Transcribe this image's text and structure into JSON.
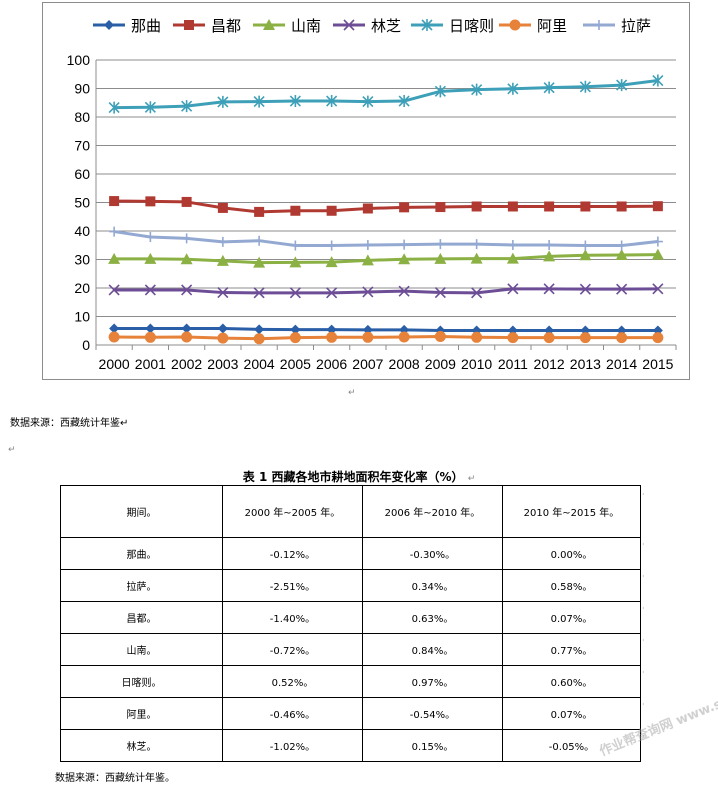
{
  "chart_data": {
    "type": "line",
    "x": [
      2000,
      2001,
      2002,
      2003,
      2004,
      2005,
      2006,
      2007,
      2008,
      2009,
      2010,
      2011,
      2012,
      2013,
      2014,
      2015
    ],
    "ylim": [
      0,
      100
    ],
    "yticks": [
      0,
      10,
      20,
      30,
      40,
      50,
      60,
      70,
      80,
      90,
      100
    ],
    "grid": true,
    "legend_position": "top",
    "series": [
      {
        "name": "那曲",
        "color": "#2a5fa8",
        "marker": "diamond",
        "values": [
          5.8,
          5.8,
          5.8,
          5.8,
          5.5,
          5.4,
          5.4,
          5.3,
          5.3,
          5.1,
          5.1,
          5.1,
          5.1,
          5.1,
          5.1,
          5.1
        ]
      },
      {
        "name": "昌都",
        "color": "#b03a32",
        "marker": "square",
        "values": [
          50.5,
          50.4,
          50.2,
          48.1,
          46.7,
          47.1,
          47.1,
          47.9,
          48.3,
          48.4,
          48.6,
          48.6,
          48.6,
          48.6,
          48.6,
          48.7
        ]
      },
      {
        "name": "山南",
        "color": "#8bb043",
        "marker": "triangle",
        "values": [
          30.2,
          30.2,
          30.1,
          29.5,
          28.9,
          29.0,
          29.1,
          29.7,
          30.1,
          30.2,
          30.3,
          30.3,
          31.1,
          31.5,
          31.6,
          31.7
        ]
      },
      {
        "name": "林芝",
        "color": "#6d4e96",
        "marker": "x",
        "values": [
          19.3,
          19.3,
          19.3,
          18.4,
          18.3,
          18.3,
          18.3,
          18.6,
          18.9,
          18.4,
          18.3,
          19.7,
          19.7,
          19.6,
          19.6,
          19.7
        ]
      },
      {
        "name": "日喀则",
        "color": "#3ea0b8",
        "marker": "star",
        "values": [
          83.3,
          83.4,
          83.8,
          85.3,
          85.4,
          85.6,
          85.6,
          85.4,
          85.6,
          89.0,
          89.6,
          89.9,
          90.3,
          90.6,
          91.2,
          92.8
        ]
      },
      {
        "name": "阿里",
        "color": "#e6823a",
        "marker": "circle",
        "values": [
          2.8,
          2.7,
          2.8,
          2.4,
          2.2,
          2.6,
          2.7,
          2.7,
          2.8,
          3.0,
          2.7,
          2.6,
          2.6,
          2.6,
          2.6,
          2.6
        ]
      },
      {
        "name": "拉萨",
        "color": "#93a9d2",
        "marker": "plus",
        "values": [
          39.8,
          37.9,
          37.4,
          36.2,
          36.6,
          34.9,
          34.9,
          35.1,
          35.2,
          35.4,
          35.4,
          35.1,
          35.1,
          34.9,
          34.9,
          36.3
        ]
      }
    ]
  },
  "doc": {
    "chart_return_mark": "↵",
    "source_1": "数据来源：西藏统计年鉴↵",
    "blank_mark": "↵",
    "table_title": "表 1    西藏各地市耕地面积年变化率（%）",
    "table_title_mark": "↵",
    "source_2": "数据来源：西藏统计年鉴。",
    "watermark": "作业帮查询网 www.shvv.com"
  },
  "table": {
    "headers": [
      "期间。",
      "2000 年~2005 年。",
      "2006 年~2010 年。",
      "2010 年~2015 年。"
    ],
    "rows": [
      [
        "那曲。",
        "-0.12%。",
        "-0.30%。",
        "0.00%。"
      ],
      [
        "拉萨。",
        "-2.51%。",
        "0.34%。",
        "0.58%。"
      ],
      [
        "昌都。",
        "-1.40%。",
        "0.63%。",
        "0.07%。"
      ],
      [
        "山南。",
        "-0.72%。",
        "0.84%。",
        "0.77%。"
      ],
      [
        "日喀则。",
        "0.52%。",
        "0.97%。",
        "0.60%。"
      ],
      [
        "阿里。",
        "-0.46%。",
        "-0.54%。",
        "0.07%。"
      ],
      [
        "林芝。",
        "-1.02%。",
        "0.15%。",
        "-0.05%。"
      ]
    ],
    "row_end_mark": "·"
  }
}
